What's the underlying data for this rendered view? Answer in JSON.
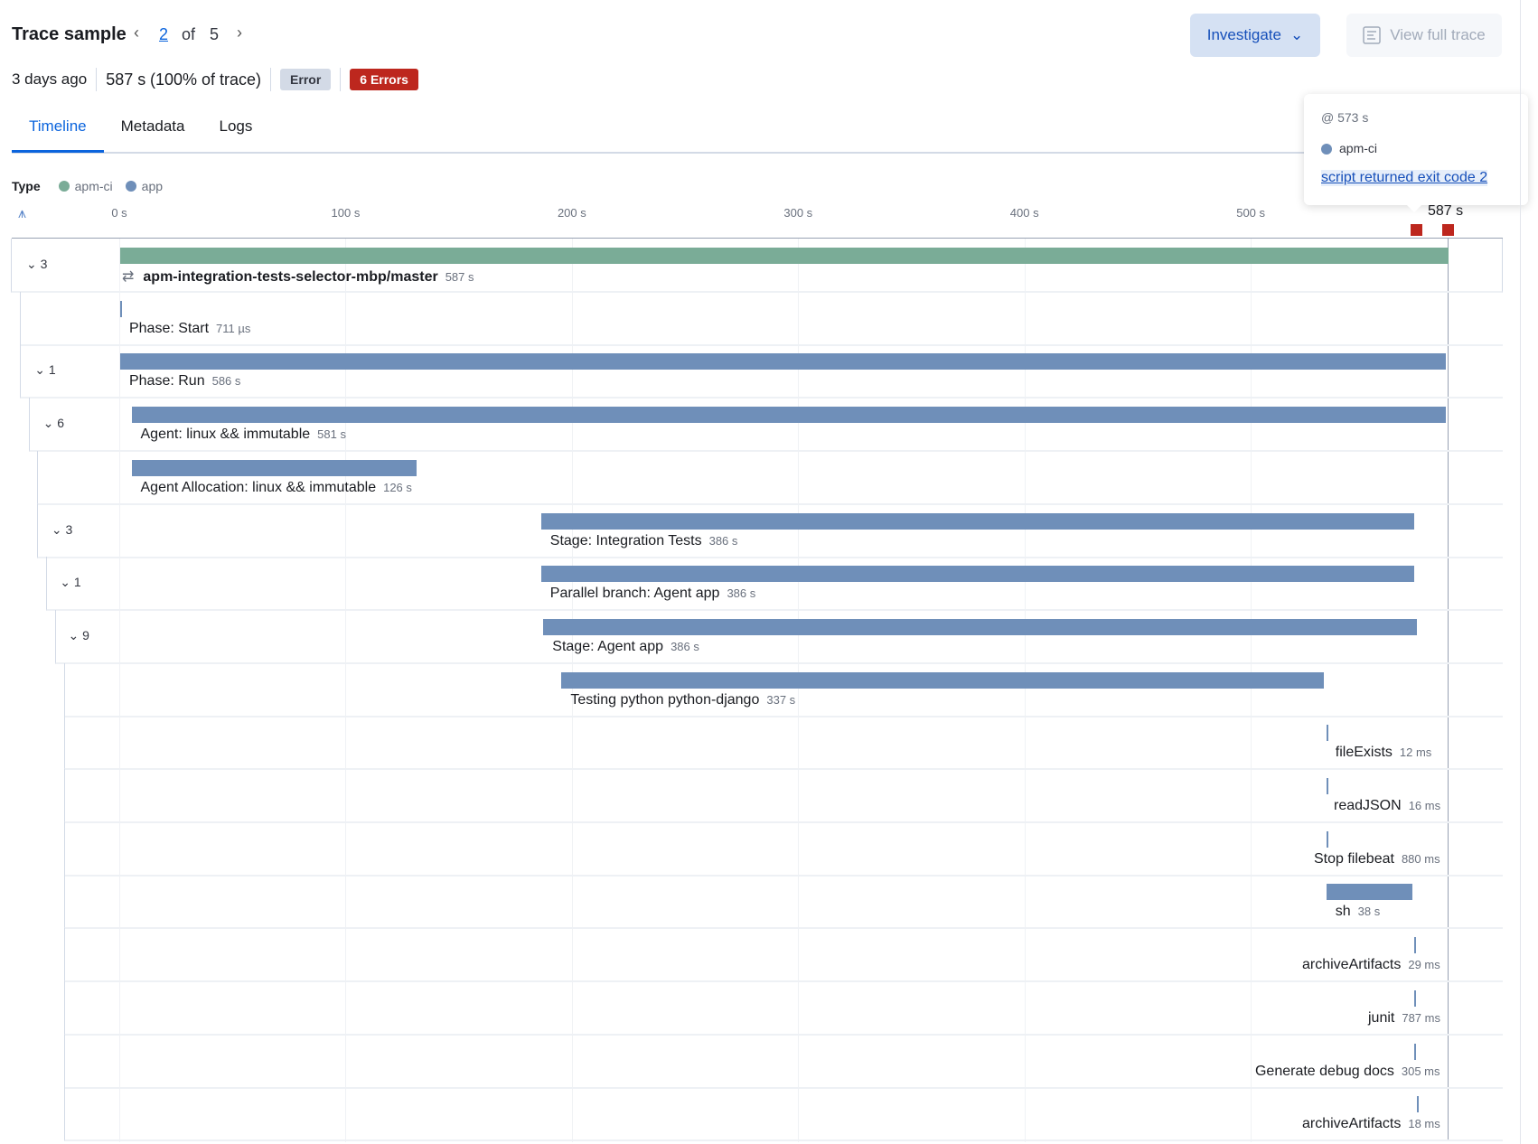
{
  "header": {
    "title": "Trace sample",
    "current": "2",
    "of": "of",
    "total": "5",
    "investigate": "Investigate",
    "view_full_trace": "View full trace"
  },
  "meta": {
    "age": "3 days ago",
    "duration": "587 s",
    "percent": "(100% of trace)",
    "error_badge": "Error",
    "errors_badge": "6 Errors"
  },
  "tabs": [
    "Timeline",
    "Metadata",
    "Logs"
  ],
  "legend": {
    "label": "Type",
    "items": [
      {
        "name": "apm-ci",
        "color": "#7aac97"
      },
      {
        "name": "app",
        "color": "#6f8fb9"
      }
    ]
  },
  "axis": {
    "ticks": [
      "0 s",
      "100 s",
      "200 s",
      "300 s",
      "400 s",
      "500 s"
    ],
    "end": "587 s",
    "max_s": 587
  },
  "error_markers_s": [
    573,
    587
  ],
  "tooltip": {
    "time": "@ 573 s",
    "service": "apm-ci",
    "message": "script returned exit code 2"
  },
  "spans": [
    {
      "toggle": "3",
      "level": 0,
      "start": 0,
      "dur": 587,
      "name": "apm-integration-tests-selector-mbp/master",
      "duration": "587 s",
      "type": "apm-ci",
      "bold": true
    },
    {
      "level": 1,
      "start": 0,
      "dur": 0,
      "name": "Phase: Start",
      "duration": "711 µs",
      "type": "app"
    },
    {
      "toggle": "1",
      "level": 1,
      "start": 0,
      "dur": 586,
      "name": "Phase: Run",
      "duration": "586 s",
      "type": "app"
    },
    {
      "toggle": "6",
      "level": 2,
      "start": 5,
      "dur": 581,
      "name": "Agent: linux && immutable",
      "duration": "581 s",
      "type": "app"
    },
    {
      "level": 3,
      "start": 5,
      "dur": 126,
      "name": "Agent Allocation: linux && immutable",
      "duration": "126 s",
      "type": "app"
    },
    {
      "toggle": "3",
      "level": 3,
      "start": 186,
      "dur": 386,
      "name": "Stage: Integration Tests",
      "duration": "386 s",
      "type": "app"
    },
    {
      "toggle": "1",
      "level": 4,
      "start": 186,
      "dur": 386,
      "name": "Parallel branch: Agent app",
      "duration": "386 s",
      "type": "app"
    },
    {
      "toggle": "9",
      "level": 5,
      "start": 187,
      "dur": 386,
      "name": "Stage: Agent app",
      "duration": "386 s",
      "type": "app"
    },
    {
      "level": 6,
      "start": 195,
      "dur": 337,
      "name": "Testing python python-django",
      "duration": "337 s",
      "type": "app"
    },
    {
      "level": 6,
      "start": 533,
      "dur": 0,
      "name": "fileExists",
      "duration": "12 ms",
      "type": "app"
    },
    {
      "level": 6,
      "start": 533,
      "dur": 0,
      "name": "readJSON",
      "duration": "16 ms",
      "type": "app"
    },
    {
      "level": 6,
      "start": 533,
      "dur": 0.9,
      "name": "Stop filebeat",
      "duration": "880 ms",
      "type": "app"
    },
    {
      "level": 6,
      "start": 533,
      "dur": 38,
      "name": "sh",
      "duration": "38 s",
      "type": "app"
    },
    {
      "level": 6,
      "start": 572,
      "dur": 0,
      "name": "archiveArtifacts",
      "duration": "29 ms",
      "type": "app"
    },
    {
      "level": 6,
      "start": 572,
      "dur": 0.8,
      "name": "junit",
      "duration": "787 ms",
      "type": "app"
    },
    {
      "level": 6,
      "start": 572,
      "dur": 0.3,
      "name": "Generate debug docs",
      "duration": "305 ms",
      "type": "app"
    },
    {
      "level": 6,
      "start": 573,
      "dur": 0,
      "name": "archiveArtifacts",
      "duration": "18 ms",
      "type": "app"
    }
  ]
}
